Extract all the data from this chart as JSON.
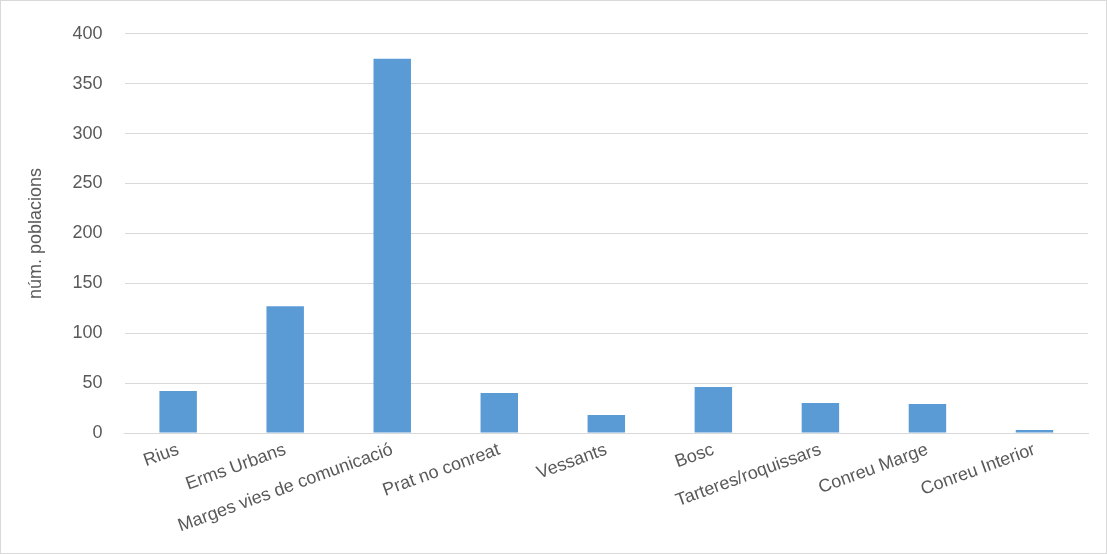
{
  "chart_data": {
    "type": "bar",
    "ylabel": "núm. poblacions",
    "categories": [
      "Rius",
      "Erms Urbans",
      "Marges vies de comunicació",
      "Prat no conreat",
      "Vessants",
      "Bosc",
      "Tarteres/roquissars",
      "Conreu Marge",
      "Conreu Interior"
    ],
    "values": [
      42,
      127,
      375,
      40,
      18,
      46,
      30,
      29,
      3
    ],
    "color": "#5b9bd5",
    "ylim": [
      0,
      400
    ],
    "yticks": [
      0,
      50,
      100,
      150,
      200,
      250,
      300,
      350,
      400
    ],
    "grid": "y",
    "legend": false
  }
}
